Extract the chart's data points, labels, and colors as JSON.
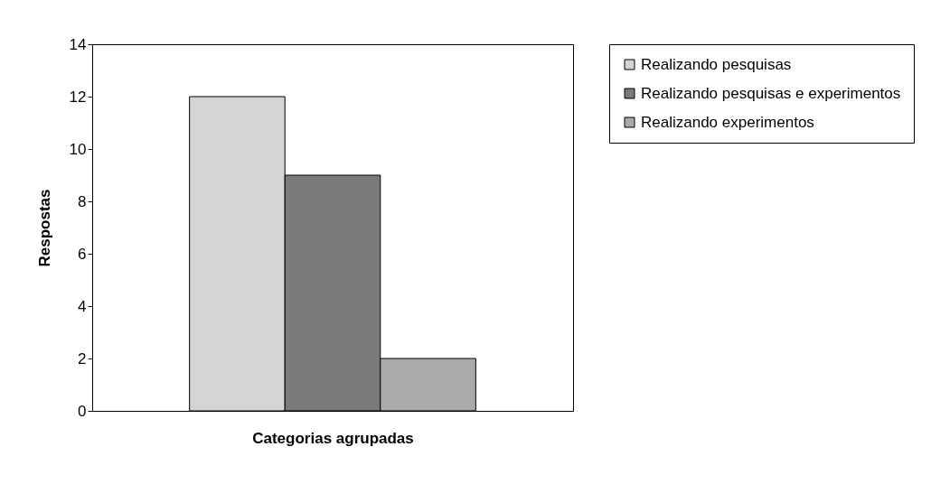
{
  "chart_data": {
    "type": "bar",
    "xlabel": "Categorias agrupadas",
    "ylabel": "Respostas",
    "categories": [
      null
    ],
    "series": [
      {
        "name": "Realizando pesquisas",
        "color": "#d4d4d4",
        "values": [
          12
        ]
      },
      {
        "name": "Realizando pesquisas e experimentos",
        "color": "#7a7a7a",
        "values": [
          9
        ]
      },
      {
        "name": "Realizando experimentos",
        "color": "#aaaaaa",
        "values": [
          2
        ]
      }
    ],
    "ylim": [
      0,
      14
    ],
    "yticks": [
      0,
      2,
      4,
      6,
      8,
      10,
      12,
      14
    ],
    "grid": false,
    "legend": "right"
  }
}
